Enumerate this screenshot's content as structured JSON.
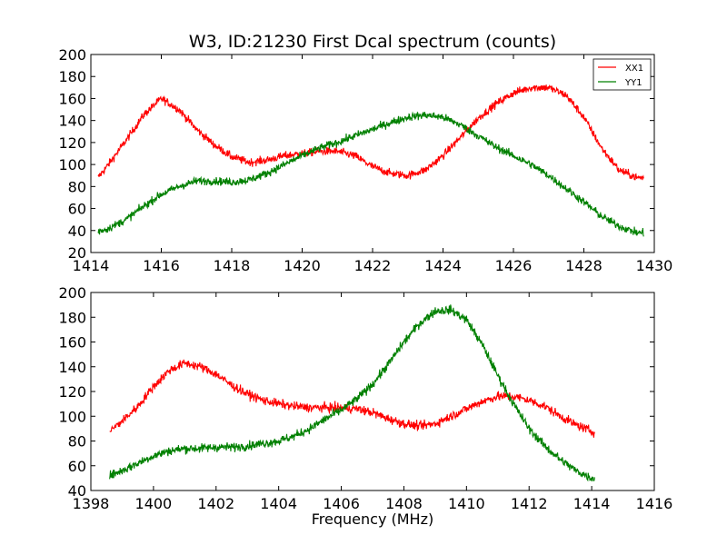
{
  "figure": {
    "title": "W3, ID:21230 First Dcal spectrum (counts)",
    "xlabel": "Frequency (MHz)"
  },
  "chart_data": [
    {
      "type": "line",
      "title": "W3, ID:21230 First Dcal spectrum (counts)",
      "xlabel": "",
      "ylabel": "",
      "xlim": [
        1414,
        1430
      ],
      "ylim": [
        20,
        200
      ],
      "xticks": [
        "1414",
        "1416",
        "1418",
        "1420",
        "1422",
        "1424",
        "1426",
        "1428",
        "1430"
      ],
      "yticks": [
        "20",
        "40",
        "60",
        "80",
        "100",
        "120",
        "140",
        "160",
        "180",
        "200"
      ],
      "legend": {
        "position": "top-right",
        "entries": [
          "XX1",
          "YY1"
        ]
      },
      "grid": false,
      "series": [
        {
          "name": "XX1",
          "color": "#ff0000",
          "x": [
            1414.2,
            1414.5,
            1415.0,
            1415.5,
            1416.0,
            1416.5,
            1417.0,
            1417.5,
            1418.0,
            1418.5,
            1419.0,
            1419.5,
            1420.0,
            1420.5,
            1421.0,
            1421.5,
            1422.0,
            1422.5,
            1423.0,
            1423.5,
            1424.0,
            1424.5,
            1425.0,
            1425.5,
            1426.0,
            1426.5,
            1427.0,
            1427.5,
            1428.0,
            1428.5,
            1429.0,
            1429.5,
            1429.7
          ],
          "y": [
            88,
            100,
            122,
            145,
            160,
            150,
            132,
            118,
            107,
            102,
            104,
            108,
            110,
            112,
            112,
            108,
            98,
            92,
            90,
            95,
            108,
            125,
            142,
            155,
            165,
            170,
            170,
            163,
            143,
            115,
            95,
            88,
            88
          ]
        },
        {
          "name": "YY1",
          "color": "#008000",
          "x": [
            1414.2,
            1414.5,
            1415.0,
            1415.5,
            1416.0,
            1416.5,
            1417.0,
            1417.5,
            1418.0,
            1418.5,
            1419.0,
            1419.5,
            1420.0,
            1420.5,
            1421.0,
            1421.5,
            1422.0,
            1422.5,
            1423.0,
            1423.5,
            1424.0,
            1424.5,
            1425.0,
            1425.5,
            1426.0,
            1426.5,
            1427.0,
            1427.5,
            1428.0,
            1428.5,
            1429.0,
            1429.5,
            1429.7
          ],
          "y": [
            39,
            42,
            50,
            62,
            73,
            80,
            85,
            85,
            84,
            86,
            92,
            100,
            108,
            115,
            120,
            126,
            132,
            138,
            143,
            145,
            143,
            136,
            126,
            116,
            108,
            100,
            90,
            78,
            66,
            53,
            44,
            38,
            38
          ]
        }
      ]
    },
    {
      "type": "line",
      "title": "",
      "xlabel": "Frequency (MHz)",
      "ylabel": "",
      "xlim": [
        1398,
        1416
      ],
      "ylim": [
        40,
        200
      ],
      "xticks": [
        "1398",
        "1400",
        "1402",
        "1404",
        "1406",
        "1408",
        "1410",
        "1412",
        "1414",
        "1416"
      ],
      "yticks": [
        "40",
        "60",
        "80",
        "100",
        "120",
        "140",
        "160",
        "180",
        "200"
      ],
      "grid": false,
      "series": [
        {
          "color": "#ff0000",
          "x": [
            1398.6,
            1399.0,
            1399.5,
            1400.0,
            1400.5,
            1401.0,
            1401.5,
            1402.0,
            1402.5,
            1403.0,
            1403.5,
            1404.0,
            1404.5,
            1405.0,
            1405.5,
            1406.0,
            1406.5,
            1407.0,
            1407.5,
            1408.0,
            1408.5,
            1409.0,
            1409.5,
            1410.0,
            1410.5,
            1411.0,
            1411.5,
            1412.0,
            1412.5,
            1413.0,
            1413.5,
            1414.0,
            1414.1
          ],
          "y": [
            88,
            96,
            108,
            124,
            137,
            143,
            140,
            134,
            125,
            118,
            113,
            110,
            108,
            107,
            107,
            107,
            106,
            103,
            98,
            94,
            92,
            94,
            100,
            106,
            112,
            116,
            116,
            113,
            108,
            100,
            93,
            88,
            87
          ]
        },
        {
          "color": "#008000",
          "x": [
            1398.6,
            1399.0,
            1399.5,
            1400.0,
            1400.5,
            1401.0,
            1401.5,
            1402.0,
            1402.5,
            1403.0,
            1403.5,
            1404.0,
            1404.5,
            1405.0,
            1405.5,
            1406.0,
            1406.5,
            1407.0,
            1407.5,
            1408.0,
            1408.5,
            1409.0,
            1409.5,
            1410.0,
            1410.5,
            1411.0,
            1411.5,
            1412.0,
            1412.5,
            1413.0,
            1413.5,
            1414.0,
            1414.1
          ],
          "y": [
            52,
            56,
            62,
            68,
            72,
            74,
            74,
            75,
            75,
            76,
            78,
            80,
            84,
            90,
            98,
            105,
            114,
            126,
            142,
            160,
            175,
            185,
            186,
            178,
            158,
            133,
            110,
            90,
            76,
            65,
            56,
            50,
            50
          ]
        }
      ]
    }
  ]
}
